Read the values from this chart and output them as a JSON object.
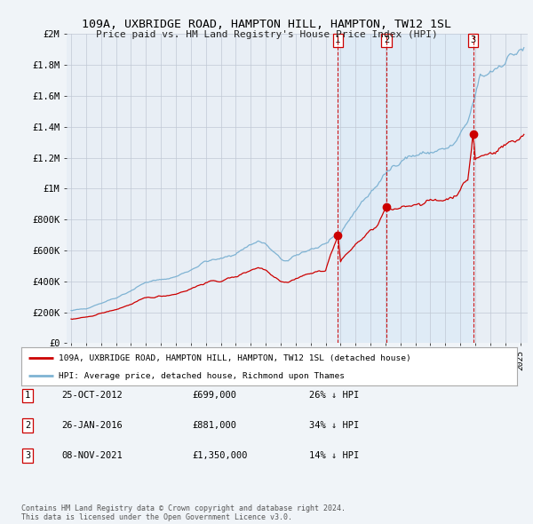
{
  "title": "109A, UXBRIDGE ROAD, HAMPTON HILL, HAMPTON, TW12 1SL",
  "subtitle": "Price paid vs. HM Land Registry's House Price Index (HPI)",
  "background_color": "#f0f4f8",
  "plot_bg_color": "#e8eef5",
  "grid_color": "#c0c8d4",
  "ylabel_ticks": [
    "£0",
    "£200K",
    "£400K",
    "£600K",
    "£800K",
    "£1M",
    "£1.2M",
    "£1.4M",
    "£1.6M",
    "£1.8M",
    "£2M"
  ],
  "ytick_values": [
    0,
    200000,
    400000,
    600000,
    800000,
    1000000,
    1200000,
    1400000,
    1600000,
    1800000,
    2000000
  ],
  "ylim": [
    0,
    2000000
  ],
  "xlim_start": 1994.7,
  "xlim_end": 2025.5,
  "sale_years": [
    2012.82,
    2016.07,
    2021.86
  ],
  "sale_prices": [
    699000,
    881000,
    1350000
  ],
  "legend_red_label": "109A, UXBRIDGE ROAD, HAMPTON HILL, HAMPTON, TW12 1SL (detached house)",
  "legend_blue_label": "HPI: Average price, detached house, Richmond upon Thames",
  "table_rows": [
    {
      "num": "1",
      "date": "25-OCT-2012",
      "price": "£699,000",
      "pct": "26% ↓ HPI"
    },
    {
      "num": "2",
      "date": "26-JAN-2016",
      "price": "£881,000",
      "pct": "34% ↓ HPI"
    },
    {
      "num": "3",
      "date": "08-NOV-2021",
      "price": "£1,350,000",
      "pct": "14% ↓ HPI"
    }
  ],
  "footer": "Contains HM Land Registry data © Crown copyright and database right 2024.\nThis data is licensed under the Open Government Licence v3.0.",
  "red_color": "#cc0000",
  "blue_color": "#7fb3d3",
  "vline_color": "#cc0000",
  "shade_color": "#d0e8f8",
  "marker_size": 6
}
